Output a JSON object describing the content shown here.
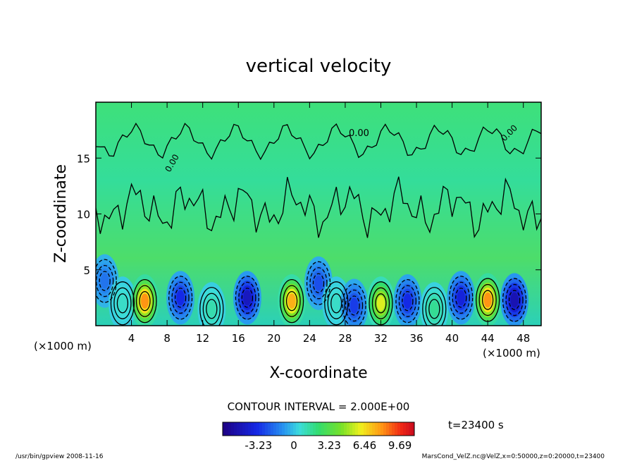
{
  "chart_data": {
    "type": "heatmap",
    "title": "vertical velocity",
    "xlabel": "X-coordinate",
    "ylabel": "Z-coordinate",
    "x_units_left": "(×1000 m)",
    "x_units_right": "(×1000 m)",
    "xlim": [
      0,
      50
    ],
    "ylim": [
      0,
      20
    ],
    "x_ticks": [
      "4",
      "8",
      "12",
      "16",
      "20",
      "24",
      "28",
      "32",
      "36",
      "40",
      "44",
      "48"
    ],
    "y_ticks": [
      "5",
      "10",
      "15"
    ],
    "contour_label": "0.00",
    "contour_interval": "CONTOUR INTERVAL = 2.000E+00",
    "colorbar_ticks": [
      "-3.23",
      "0",
      "3.23",
      "6.46",
      "9.69"
    ],
    "colorbar_range": [
      -6.5,
      11
    ],
    "time_label": "t=23400 s",
    "cells": [
      {
        "x": 1,
        "z": 4.0,
        "w": -2.0
      },
      {
        "x": 3,
        "z": 2.0,
        "w": 1.0
      },
      {
        "x": 5.5,
        "z": 2.2,
        "w": 9.69
      },
      {
        "x": 9.5,
        "z": 2.5,
        "w": -4.0
      },
      {
        "x": 13,
        "z": 1.5,
        "w": 1.5
      },
      {
        "x": 17,
        "z": 2.5,
        "w": -5.5
      },
      {
        "x": 22,
        "z": 2.2,
        "w": 9.0
      },
      {
        "x": 25,
        "z": 3.8,
        "w": -3.0
      },
      {
        "x": 27,
        "z": 2.0,
        "w": 1.0
      },
      {
        "x": 29,
        "z": 1.8,
        "w": -3.5
      },
      {
        "x": 32,
        "z": 2.0,
        "w": 7.0
      },
      {
        "x": 35,
        "z": 2.2,
        "w": -4.0
      },
      {
        "x": 38,
        "z": 1.5,
        "w": 2.0
      },
      {
        "x": 41,
        "z": 2.5,
        "w": -4.5
      },
      {
        "x": 44,
        "z": 2.3,
        "w": 9.69
      },
      {
        "x": 47,
        "z": 2.3,
        "w": -6.0
      }
    ]
  },
  "footer": {
    "left": "/usr/bin/gpview   2008-11-16",
    "right": "MarsCond_VelZ.nc@VelZ,x=0:50000,z=0:20000,t=23400"
  }
}
